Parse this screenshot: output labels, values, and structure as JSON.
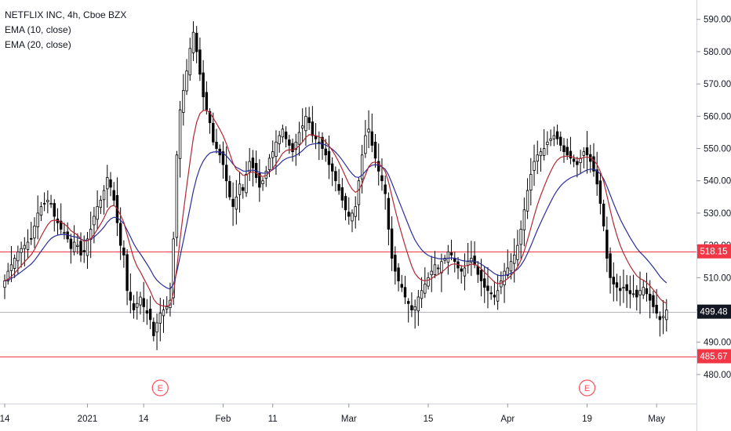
{
  "legend": {
    "symbol": "NETFLIX INC, 4h, Cboe BZX",
    "ema10": "EMA (10, close)",
    "ema20": "EMA (20, close)"
  },
  "chart_data": {
    "type": "candlestick",
    "ylim": [
      471,
      596
    ],
    "y_ticks": [
      "590.00",
      "580.00",
      "570.00",
      "560.00",
      "550.00",
      "540.00",
      "530.00",
      "520.00",
      "510.00",
      "500.00",
      "490.00",
      "480.00"
    ],
    "x_ticks": [
      "14",
      "2021",
      "14",
      "Feb",
      "11",
      "Mar",
      "15",
      "Apr",
      "19",
      "May"
    ],
    "price_labels": [
      {
        "value": 518.15,
        "text": "518.15",
        "color": "#f23645"
      },
      {
        "value": 499.48,
        "text": "499.48",
        "color": "#131722"
      },
      {
        "value": 485.67,
        "text": "485.67",
        "color": "#f23645"
      }
    ],
    "hlines": [
      {
        "value": 518.15,
        "color": "#f23645"
      },
      {
        "value": 485.67,
        "color": "#f23645"
      },
      {
        "value": 499.48,
        "color": "#b2b5be"
      }
    ],
    "earnings_markers": [
      {
        "label": "E",
        "bar": 47
      },
      {
        "label": "E",
        "bar": 176
      }
    ],
    "series_colors": {
      "ema10": "#b22833",
      "ema20": "#2a2e9c",
      "up": "#ffffff",
      "down": "#000000"
    },
    "closes": [
      509,
      512,
      514,
      516,
      518,
      519,
      520,
      521,
      522,
      526,
      530,
      532,
      533,
      534,
      533,
      529,
      527,
      525,
      524,
      522,
      519,
      521,
      520,
      517,
      518,
      522,
      525,
      529,
      532,
      534,
      537,
      541,
      538,
      534,
      527,
      520,
      517,
      506,
      503,
      500,
      502,
      504,
      501,
      499,
      497,
      492,
      496,
      499,
      500,
      501,
      503,
      522,
      548,
      562,
      568,
      574,
      581,
      586,
      580,
      573,
      566,
      562,
      558,
      552,
      550,
      548,
      545,
      540,
      535,
      532,
      535,
      539,
      537,
      542,
      546,
      544,
      541,
      538,
      540,
      543,
      547,
      549,
      552,
      554,
      556,
      553,
      551,
      549,
      552,
      555,
      557,
      560,
      558,
      554,
      553,
      552,
      550,
      548,
      545,
      543,
      540,
      537,
      534,
      531,
      529,
      530,
      532,
      540,
      548,
      554,
      556,
      551,
      547,
      543,
      540,
      536,
      525,
      516,
      512,
      509,
      507,
      504,
      502,
      500,
      501,
      504,
      506,
      508,
      510,
      512,
      514,
      513,
      515,
      516,
      518,
      517,
      515,
      513,
      512,
      513,
      515,
      516,
      514,
      511,
      509,
      507,
      506,
      505,
      504,
      506,
      509,
      512,
      513,
      515,
      517,
      520,
      525,
      531,
      537,
      542,
      546,
      548,
      549,
      550,
      552,
      553,
      554,
      553,
      551,
      549,
      548,
      547,
      546,
      545,
      547,
      549,
      548,
      546,
      543,
      539,
      533,
      526,
      516,
      510,
      508,
      507,
      506,
      507,
      506,
      505,
      505,
      504,
      506,
      507,
      505,
      503,
      501,
      499,
      497,
      498,
      500
    ]
  }
}
